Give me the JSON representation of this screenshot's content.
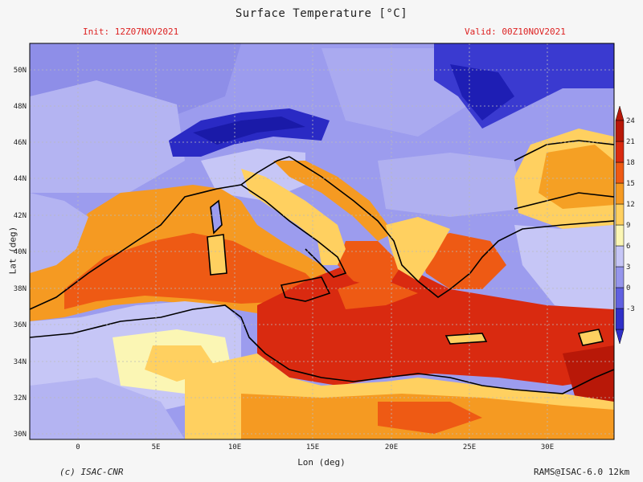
{
  "title": "Surface Temperature [°C]",
  "init": "Init: 12Z07NOV2021",
  "valid": "Valid: 00Z10NOV2021",
  "axes": {
    "xlabel": "Lon (deg)",
    "ylabel": "Lat (deg)",
    "lon_ticks": [
      "0",
      "5E",
      "10E",
      "15E",
      "20E",
      "25E",
      "30E"
    ],
    "lat_ticks": [
      "30N",
      "32N",
      "34N",
      "36N",
      "38N",
      "40N",
      "42N",
      "44N",
      "46N",
      "48N",
      "50N"
    ]
  },
  "colorbar": {
    "labels": [
      "-3",
      "0",
      "3",
      "6",
      "9",
      "12",
      "15",
      "18",
      "21",
      "24"
    ],
    "colors": [
      "#3030c8",
      "#6060e0",
      "#9696ec",
      "#c6c6f6",
      "#fbf6b4",
      "#ffd060",
      "#f59a22",
      "#ee5a14",
      "#d92a10",
      "#b81808"
    ]
  },
  "footer": {
    "copyright": "(c) ISAC-CNR",
    "model": "RAMS@ISAC-6.0 12km"
  }
}
